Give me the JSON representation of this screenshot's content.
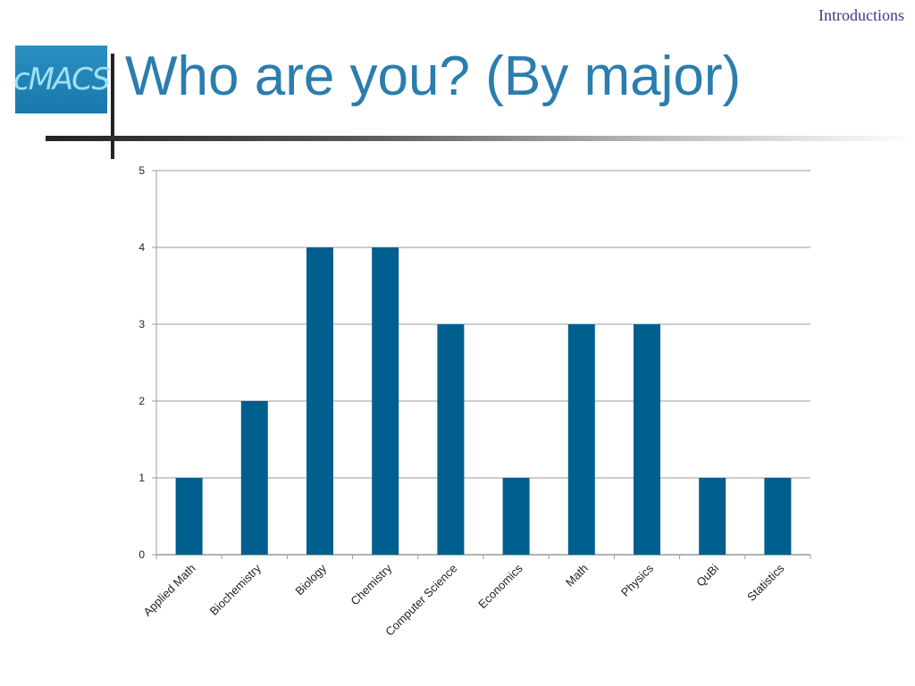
{
  "header": {
    "section": "Introductions",
    "title": "Who are you? (By major)",
    "logo_text": "cMACS"
  },
  "colors": {
    "bar": "#005f8f",
    "title": "#2a7dae"
  },
  "chart_data": {
    "type": "bar",
    "title": "",
    "categories": [
      "Applied Math",
      "Biochemistry",
      "Biology",
      "Chemistry",
      "Computer Science",
      "Economics",
      "Math",
      "Physics",
      "QuBi",
      "Statistics"
    ],
    "values": [
      1,
      2,
      4,
      4,
      3,
      1,
      3,
      3,
      1,
      1
    ],
    "ylim": [
      0,
      5
    ],
    "yticks": [
      0,
      1,
      2,
      3,
      4,
      5
    ],
    "grid": true,
    "xlabel": "",
    "ylabel": ""
  }
}
